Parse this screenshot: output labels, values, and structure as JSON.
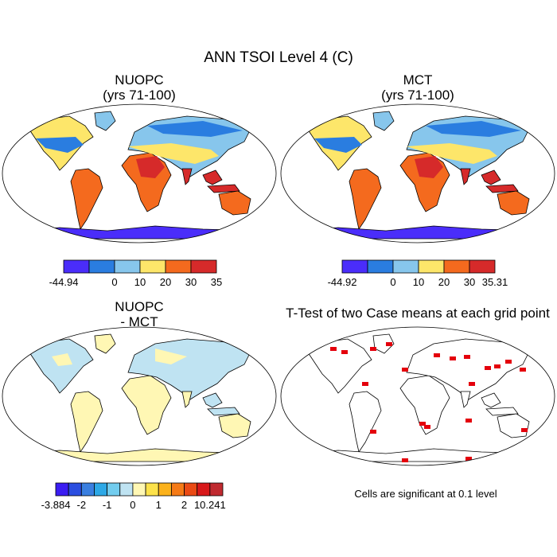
{
  "chart_data": [
    {
      "type": "heatmap",
      "title": "NUOPC",
      "subtitle": "(yrs 71-100)",
      "colorbar": {
        "colors": [
          "#4a2dfa",
          "#2a7de0",
          "#87c6ec",
          "#fde66a",
          "#f46a1e",
          "#d62a2a"
        ],
        "labels": [
          "-44.94",
          "",
          "0",
          "10",
          "20",
          "30",
          "35"
        ]
      }
    },
    {
      "type": "heatmap",
      "title": "MCT",
      "subtitle": "(yrs 71-100)",
      "colorbar": {
        "colors": [
          "#4a2dfa",
          "#2a7de0",
          "#87c6ec",
          "#fde66a",
          "#f46a1e",
          "#d62a2a"
        ],
        "labels": [
          "-44.92",
          "",
          "0",
          "10",
          "20",
          "30",
          "35.31"
        ]
      }
    },
    {
      "type": "heatmap",
      "title": "NUOPC",
      "subtitle": "- MCT",
      "colorbar": {
        "colors": [
          "#3b1df2",
          "#2b4ee0",
          "#3a7fe0",
          "#2da8e6",
          "#72ccee",
          "#bfe3f2",
          "#fff7b4",
          "#fde24a",
          "#fbb21c",
          "#f57a16",
          "#ea4a14",
          "#d8181a",
          "#c02a30"
        ],
        "labels": [
          "-3.884",
          "",
          "-2",
          "",
          "-1",
          "",
          "0",
          "",
          "1",
          "",
          "2",
          "",
          "10.241"
        ]
      }
    },
    {
      "type": "heatmap",
      "title": "T-Test of two Case means at each grid point",
      "note": "Cells are significant at 0.1 level"
    }
  ],
  "page": {
    "title": "ANN TSOI Level 4 (C)"
  },
  "colors": {
    "significant": "#e4000c",
    "outline": "#000000",
    "land_blue": "#b8dcf0",
    "land_yellow": "#fdf3a6"
  }
}
